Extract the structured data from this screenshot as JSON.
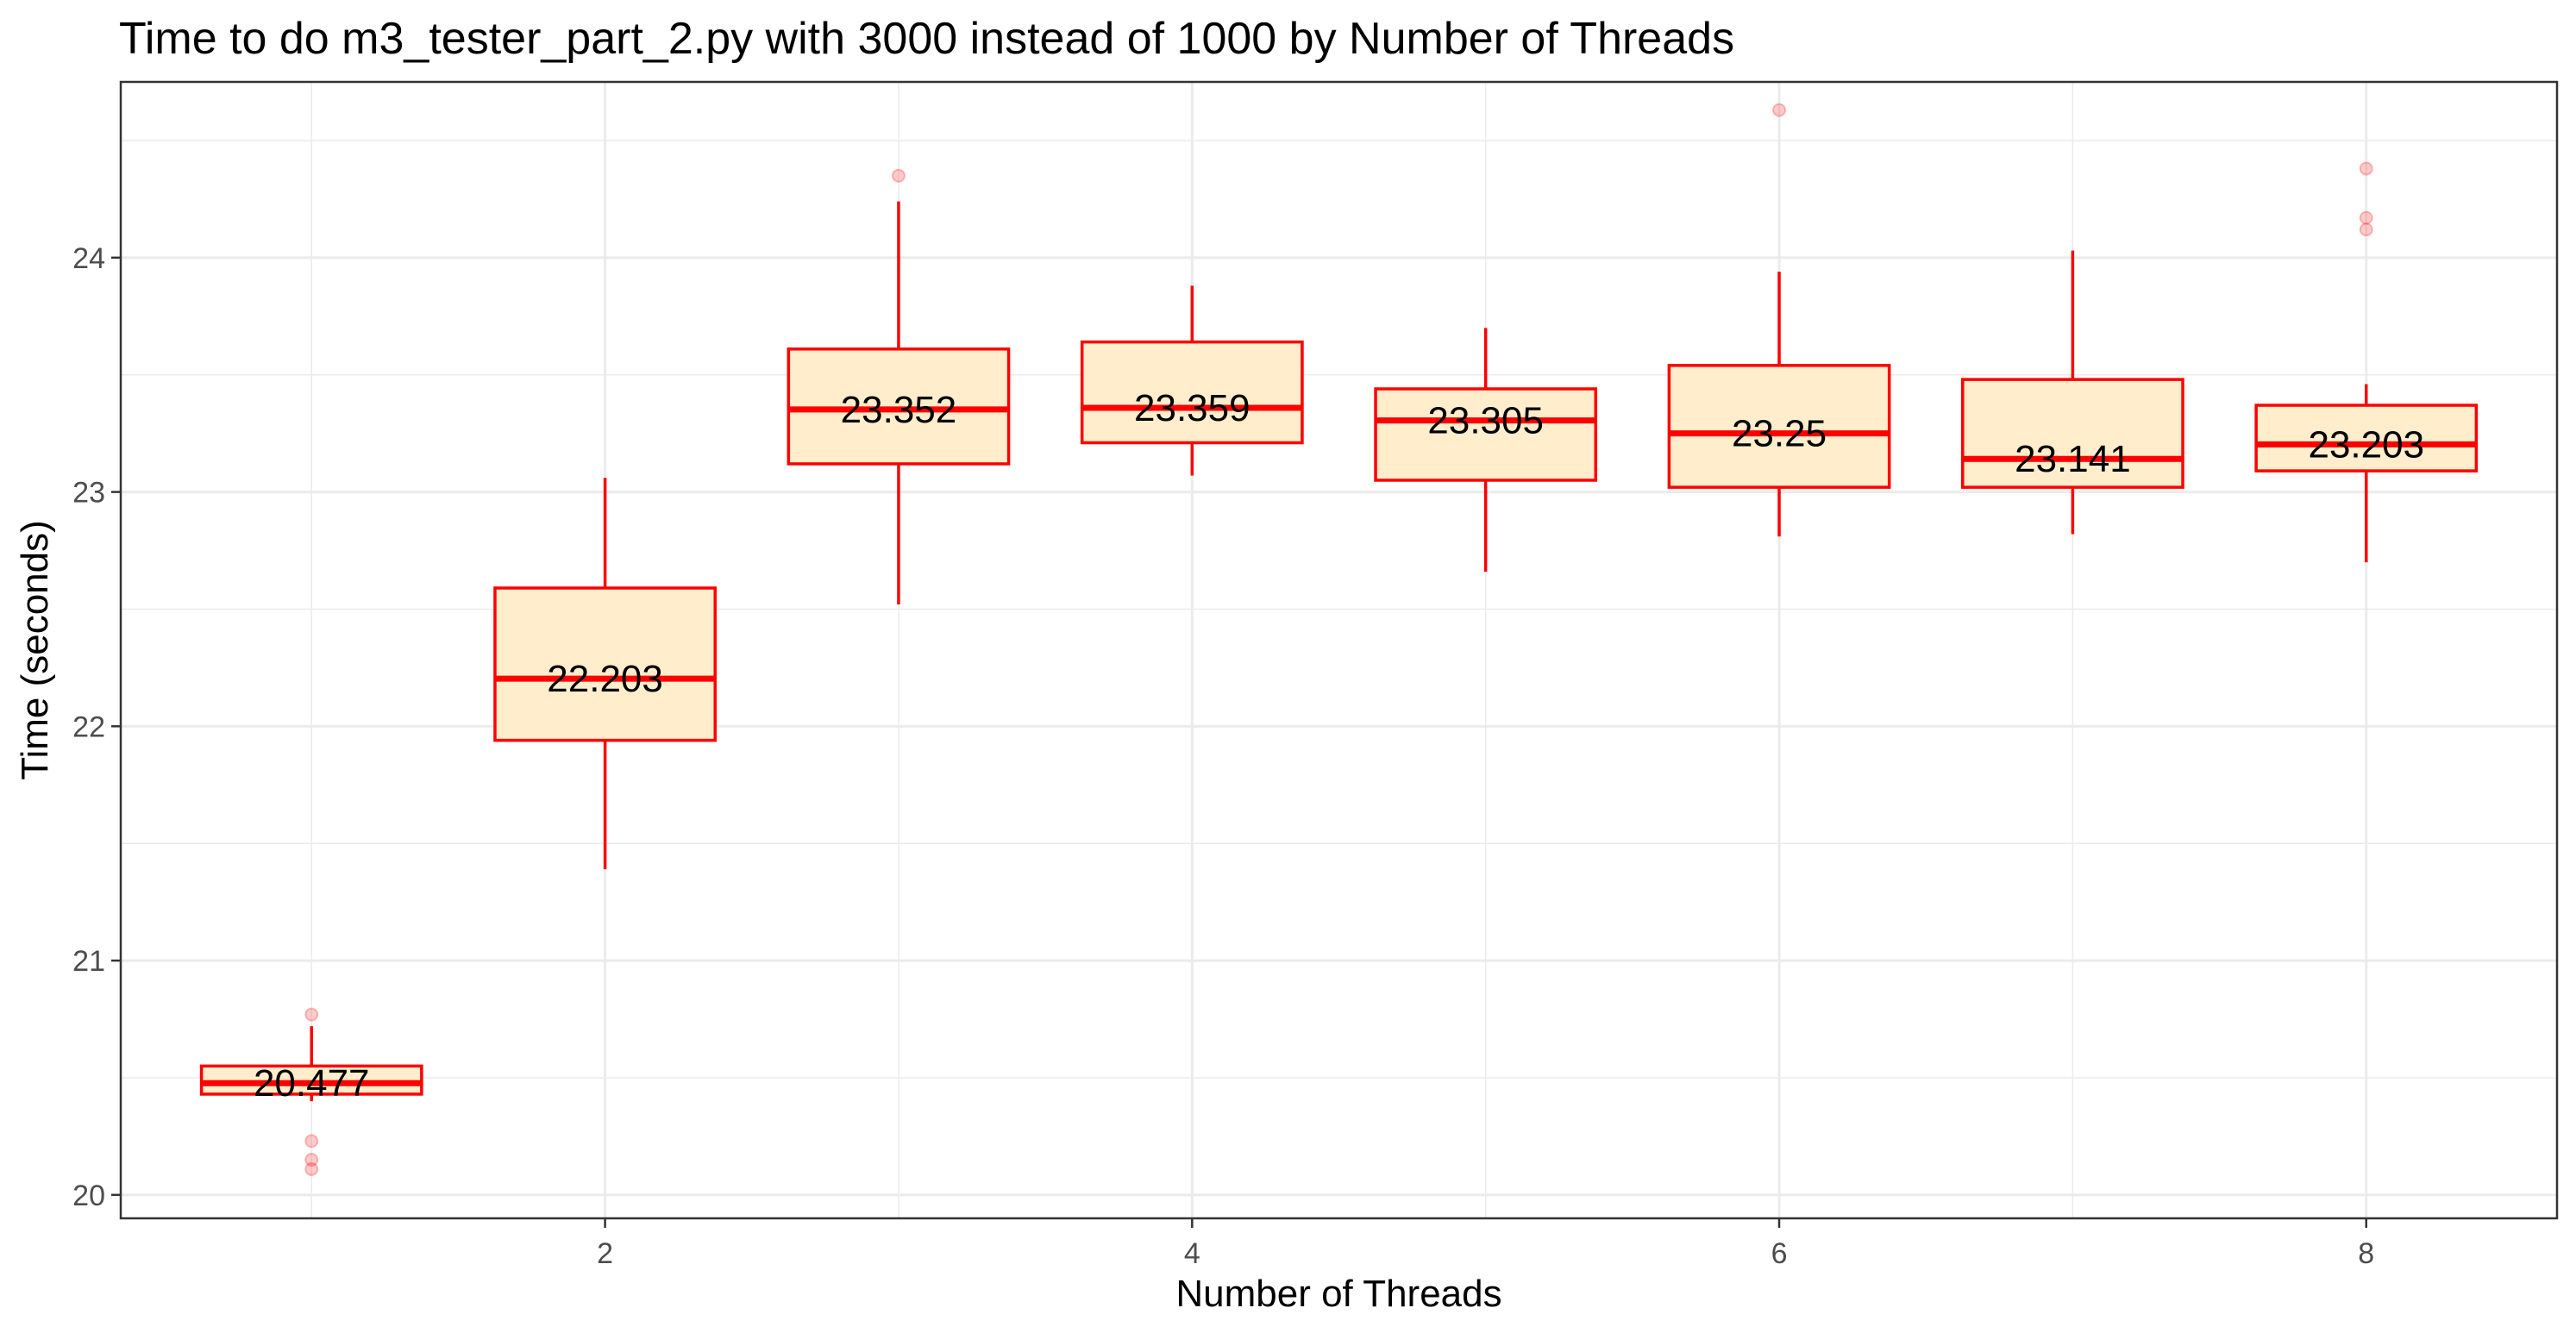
{
  "chart_data": {
    "type": "box",
    "title": "Time to do m3_tester_part_2.py with 3000 instead of 1000 by Number of Threads",
    "xlabel": "Number of Threads",
    "ylabel": "Time (seconds)",
    "xlim": [
      0.35,
      8.65
    ],
    "ylim": [
      19.9,
      24.75
    ],
    "x_ticks": [
      2,
      4,
      6,
      8
    ],
    "y_ticks": [
      20,
      21,
      22,
      23,
      24
    ],
    "grid": true,
    "legend": "none",
    "colors": {
      "box_fill": "#FFEDCC",
      "box_stroke": "#FF0000",
      "outlier": "#FF0000",
      "grid": "#EBEBEB",
      "panel_border": "#333333"
    },
    "boxes": [
      {
        "x": 1,
        "median": 20.477,
        "median_label": "20.477",
        "q1": 20.43,
        "q3": 20.55,
        "whisker_low": 20.4,
        "whisker_high": 20.72,
        "outliers": [
          20.77,
          20.23,
          20.15,
          20.11
        ]
      },
      {
        "x": 2,
        "median": 22.203,
        "median_label": "22.203",
        "q1": 21.94,
        "q3": 22.59,
        "whisker_low": 21.39,
        "whisker_high": 23.06,
        "outliers": []
      },
      {
        "x": 3,
        "median": 23.352,
        "median_label": "23.352",
        "q1": 23.12,
        "q3": 23.61,
        "whisker_low": 22.52,
        "whisker_high": 24.24,
        "outliers": [
          24.35
        ]
      },
      {
        "x": 4,
        "median": 23.359,
        "median_label": "23.359",
        "q1": 23.21,
        "q3": 23.64,
        "whisker_low": 23.07,
        "whisker_high": 23.88,
        "outliers": []
      },
      {
        "x": 5,
        "median": 23.305,
        "median_label": "23.305",
        "q1": 23.05,
        "q3": 23.44,
        "whisker_low": 22.66,
        "whisker_high": 23.7,
        "outliers": []
      },
      {
        "x": 6,
        "median": 23.25,
        "median_label": "23.25",
        "q1": 23.02,
        "q3": 23.54,
        "whisker_low": 22.81,
        "whisker_high": 23.94,
        "outliers": [
          24.63
        ]
      },
      {
        "x": 7,
        "median": 23.141,
        "median_label": "23.141",
        "q1": 23.02,
        "q3": 23.48,
        "whisker_low": 22.82,
        "whisker_high": 24.03,
        "outliers": []
      },
      {
        "x": 8,
        "median": 23.203,
        "median_label": "23.203",
        "q1": 23.09,
        "q3": 23.37,
        "whisker_low": 22.7,
        "whisker_high": 23.46,
        "outliers": [
          24.38,
          24.17,
          24.12
        ]
      }
    ]
  }
}
